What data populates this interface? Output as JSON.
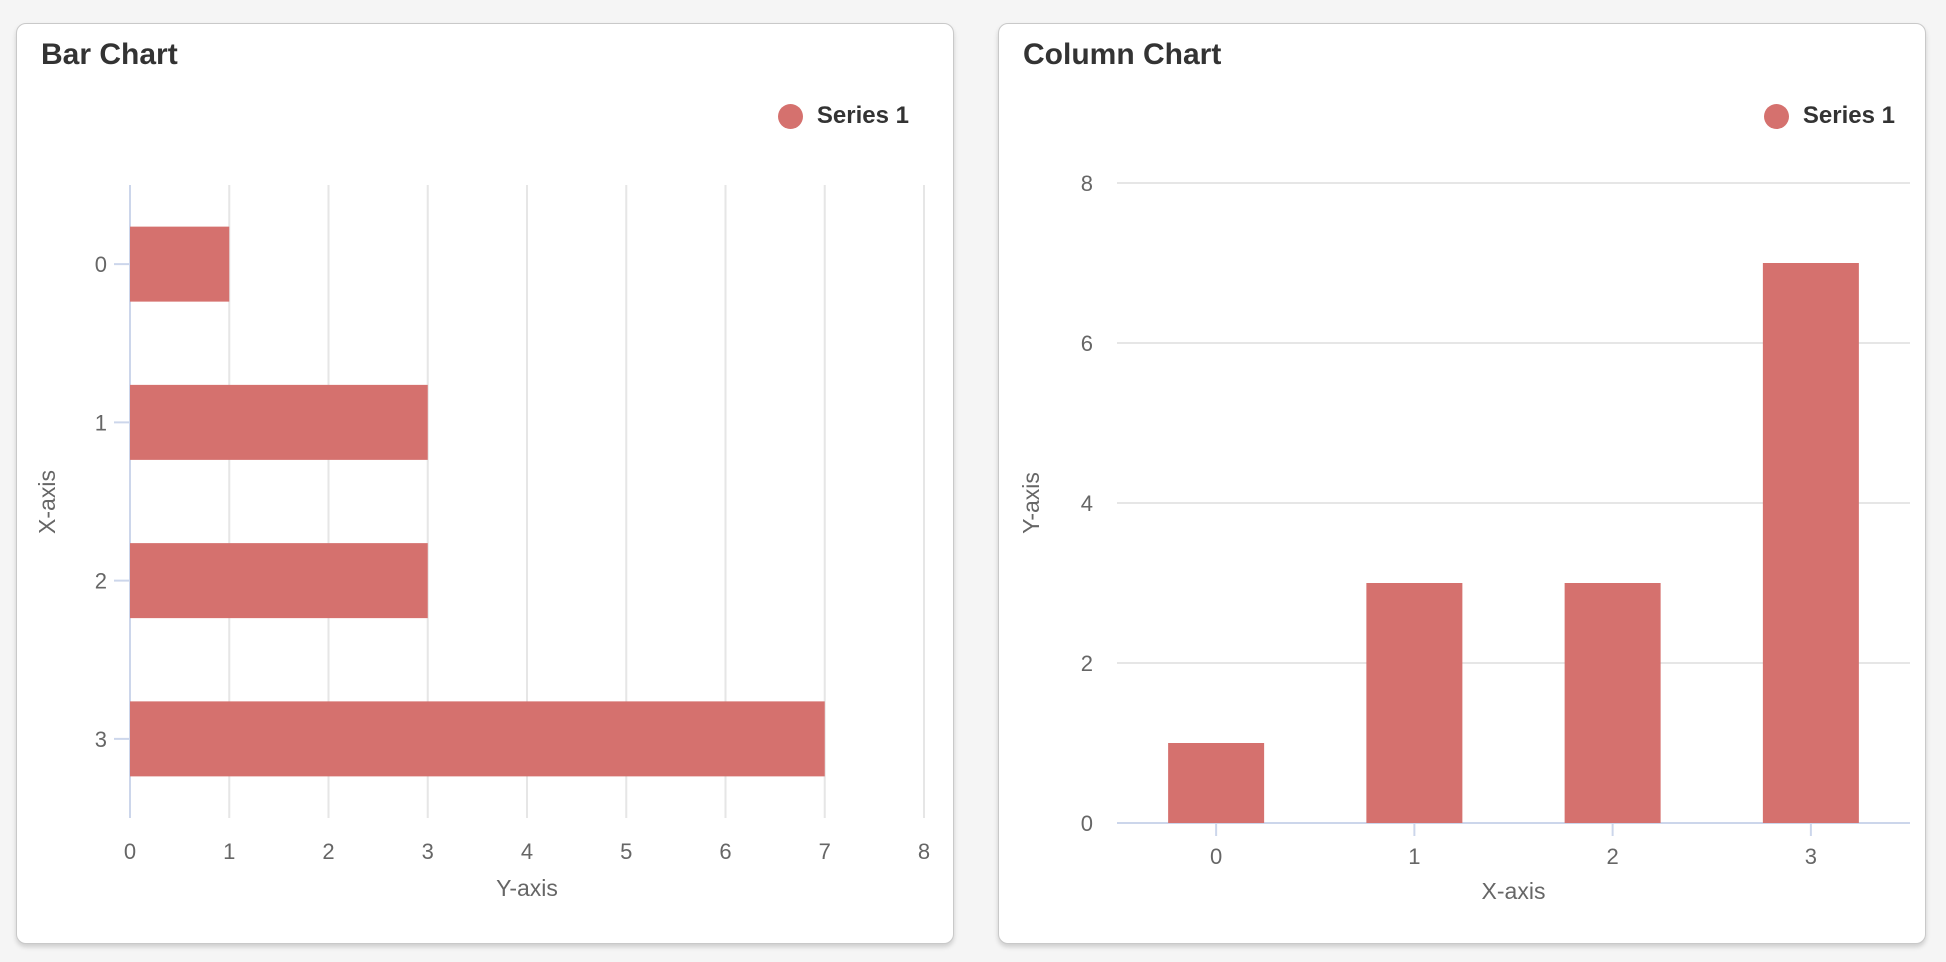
{
  "page": {
    "background_color": "#f5f5f5"
  },
  "colors": {
    "series": "#d5716e",
    "axis_line": "#ccd6eb",
    "grid_line": "#e6e6e6",
    "tick_label": "#666666",
    "title_text": "#333333",
    "card_background": "#ffffff",
    "card_border": "#c9c9c9"
  },
  "cards": [
    {
      "title": "Bar Chart",
      "legend_label": "Series 1"
    },
    {
      "title": "Column Chart",
      "legend_label": "Series 1"
    }
  ],
  "chart_data": [
    {
      "type": "bar",
      "title": "Bar Chart",
      "orientation": "horizontal",
      "categories": [
        "0",
        "1",
        "2",
        "3"
      ],
      "series": [
        {
          "name": "Series 1",
          "values": [
            1,
            3,
            3,
            7
          ]
        }
      ],
      "category_axis": {
        "label": "X-axis",
        "position": "left"
      },
      "value_axis": {
        "label": "Y-axis",
        "position": "bottom",
        "ticks": [
          0,
          1,
          2,
          3,
          4,
          5,
          6,
          7,
          8
        ],
        "range": [
          0,
          8
        ]
      },
      "grid": true,
      "legend_position": "top-right"
    },
    {
      "type": "bar",
      "title": "Column Chart",
      "orientation": "vertical",
      "categories": [
        "0",
        "1",
        "2",
        "3"
      ],
      "series": [
        {
          "name": "Series 1",
          "values": [
            1,
            3,
            3,
            7
          ]
        }
      ],
      "category_axis": {
        "label": "X-axis",
        "position": "bottom"
      },
      "value_axis": {
        "label": "Y-axis",
        "position": "left",
        "ticks": [
          0,
          2,
          4,
          6,
          8
        ],
        "range": [
          0,
          8
        ]
      },
      "grid": true,
      "legend_position": "top-right"
    }
  ]
}
